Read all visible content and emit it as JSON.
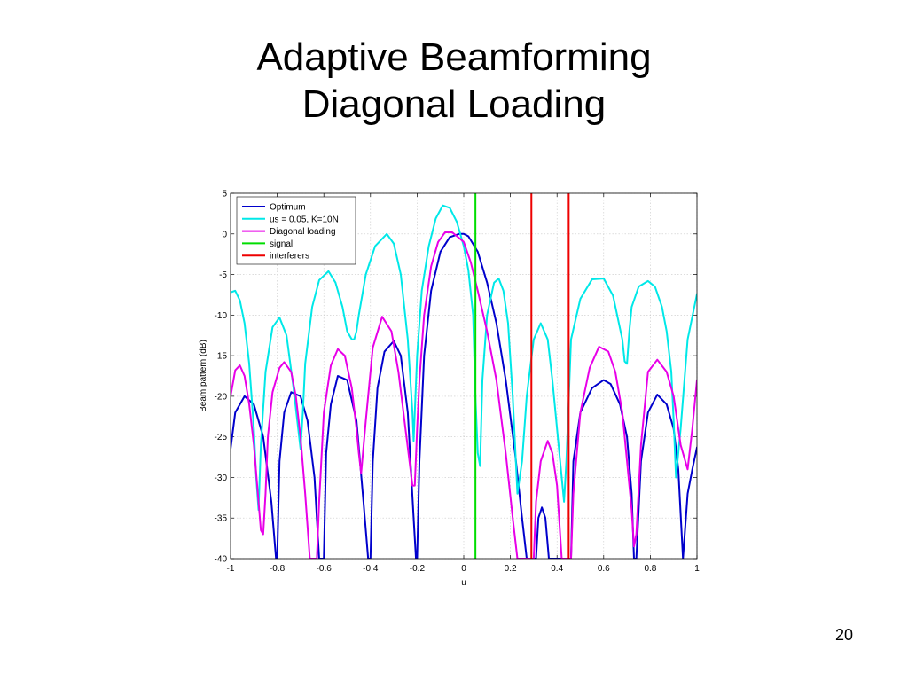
{
  "slide": {
    "title_line1": "Adaptive Beamforming",
    "title_line2": "Diagonal Loading",
    "page_number": "20"
  },
  "chart_data": {
    "type": "line",
    "title": "",
    "xlabel": "u",
    "ylabel": "Beam pattern (dB)",
    "xlim": [
      -1,
      1
    ],
    "ylim": [
      -40,
      5
    ],
    "xticks": [
      -1,
      -0.8,
      -0.6,
      -0.4,
      -0.2,
      0,
      0.2,
      0.4,
      0.6,
      0.8,
      1
    ],
    "xtick_labels": [
      "-1",
      "-0.8",
      "-0.6",
      "-0.4",
      "-0.2",
      "0",
      "0.2",
      "0.4",
      "0.6",
      "0.8",
      "1"
    ],
    "yticks": [
      5,
      0,
      -5,
      -10,
      -15,
      -20,
      -25,
      -30,
      -35,
      -40
    ],
    "ytick_labels": [
      "5",
      "0",
      "-5",
      "-10",
      "-15",
      "-20",
      "-25",
      "-30",
      "-35",
      "-40"
    ],
    "grid": true,
    "legend_position": "top-left",
    "series": [
      {
        "name": "Optimum",
        "color": "#0000cc",
        "x": [
          -1,
          -0.98,
          -0.94,
          -0.9,
          -0.86,
          -0.825,
          -0.805,
          -0.8,
          -0.79,
          -0.77,
          -0.74,
          -0.7,
          -0.67,
          -0.64,
          -0.62,
          -0.61,
          -0.6,
          -0.59,
          -0.57,
          -0.54,
          -0.5,
          -0.46,
          -0.43,
          -0.41,
          -0.4,
          -0.39,
          -0.37,
          -0.34,
          -0.3,
          -0.27,
          -0.24,
          -0.215,
          -0.205,
          -0.2,
          -0.19,
          -0.17,
          -0.14,
          -0.1,
          -0.06,
          -0.02,
          0,
          0.02,
          0.06,
          0.1,
          0.14,
          0.18,
          0.22,
          0.25,
          0.27,
          0.28,
          0.29,
          0.3,
          0.31,
          0.32,
          0.335,
          0.35,
          0.365,
          0.375,
          0.38,
          0.39,
          0.41,
          0.43,
          0.45,
          0.46,
          0.47,
          0.5,
          0.55,
          0.6,
          0.63,
          0.67,
          0.7,
          0.72,
          0.73,
          0.74,
          0.76,
          0.79,
          0.83,
          0.87,
          0.9,
          0.92,
          0.94,
          0.96,
          0.98,
          1
        ],
        "y": [
          -26.5,
          -22,
          -20,
          -21,
          -25,
          -33,
          -40,
          -40,
          -28,
          -22,
          -19.5,
          -20,
          -23,
          -30,
          -40,
          -40,
          -40,
          -27,
          -21,
          -17.5,
          -18,
          -23,
          -33,
          -40,
          -40,
          -28,
          -19,
          -14.5,
          -13.2,
          -15,
          -22,
          -35,
          -40,
          -40,
          -28,
          -15,
          -7,
          -2.2,
          -0.4,
          0,
          0,
          -0.3,
          -2.2,
          -6,
          -11,
          -18,
          -27,
          -35,
          -40,
          -40,
          -40,
          -40,
          -40,
          -35,
          -33.7,
          -35,
          -40,
          -40,
          -40,
          -40,
          -40,
          -40,
          -40,
          -40,
          -28,
          -22,
          -19,
          -18,
          -18.5,
          -21,
          -25,
          -32,
          -40,
          -40,
          -28,
          -22,
          -19.8,
          -21,
          -24,
          -29,
          -40,
          -32,
          -29,
          -26.3
        ]
      },
      {
        "name": "us = 0.05, K=10N",
        "color": "#00e8e8",
        "x": [
          -1,
          -0.98,
          -0.96,
          -0.94,
          -0.92,
          -0.9,
          -0.89,
          -0.88,
          -0.87,
          -0.85,
          -0.82,
          -0.79,
          -0.76,
          -0.73,
          -0.71,
          -0.7,
          -0.69,
          -0.68,
          -0.65,
          -0.62,
          -0.58,
          -0.55,
          -0.52,
          -0.5,
          -0.48,
          -0.47,
          -0.46,
          -0.45,
          -0.42,
          -0.38,
          -0.33,
          -0.3,
          -0.27,
          -0.24,
          -0.22,
          -0.215,
          -0.21,
          -0.2,
          -0.18,
          -0.15,
          -0.12,
          -0.09,
          -0.06,
          -0.03,
          0,
          0.02,
          0.04,
          0.05,
          0.06,
          0.07,
          0.08,
          0.1,
          0.13,
          0.15,
          0.17,
          0.19,
          0.21,
          0.23,
          0.25,
          0.27,
          0.3,
          0.33,
          0.36,
          0.38,
          0.4,
          0.42,
          0.43,
          0.44,
          0.46,
          0.5,
          0.55,
          0.6,
          0.64,
          0.68,
          0.69,
          0.7,
          0.71,
          0.72,
          0.75,
          0.79,
          0.82,
          0.85,
          0.87,
          0.89,
          0.9,
          0.91,
          0.93,
          0.96,
          1
        ],
        "y": [
          -7.2,
          -7,
          -8.2,
          -11,
          -16,
          -24,
          -30,
          -34,
          -26,
          -17,
          -11.5,
          -10.3,
          -12.5,
          -19,
          -24,
          -26.5,
          -22,
          -16,
          -9,
          -5.7,
          -4.6,
          -6,
          -9,
          -12,
          -13,
          -13,
          -12,
          -10,
          -5,
          -1.5,
          0,
          -1.2,
          -5,
          -13,
          -22,
          -25.5,
          -22,
          -15,
          -7,
          -1.5,
          1.9,
          3.5,
          3.2,
          1.5,
          -1.5,
          -4.5,
          -10,
          -20,
          -27,
          -28.6,
          -18,
          -10,
          -6,
          -5.5,
          -7,
          -11,
          -20,
          -32,
          -28,
          -20,
          -13,
          -11,
          -13,
          -18,
          -24,
          -30,
          -33,
          -28,
          -13,
          -8,
          -5.6,
          -5.5,
          -7.6,
          -13,
          -15.7,
          -16,
          -12,
          -9,
          -6.5,
          -5.8,
          -6.5,
          -9,
          -12,
          -17,
          -23,
          -30,
          -24,
          -13,
          -7.4
        ]
      },
      {
        "name": "Diagonal loading",
        "color": "#e800e8",
        "x": [
          -1,
          -0.98,
          -0.96,
          -0.94,
          -0.92,
          -0.9,
          -0.88,
          -0.87,
          -0.86,
          -0.85,
          -0.84,
          -0.82,
          -0.79,
          -0.77,
          -0.74,
          -0.72,
          -0.7,
          -0.68,
          -0.66,
          -0.64,
          -0.63,
          -0.62,
          -0.6,
          -0.57,
          -0.54,
          -0.51,
          -0.48,
          -0.46,
          -0.45,
          -0.44,
          -0.42,
          -0.39,
          -0.35,
          -0.31,
          -0.28,
          -0.25,
          -0.22,
          -0.21,
          -0.2,
          -0.19,
          -0.17,
          -0.14,
          -0.11,
          -0.08,
          -0.05,
          -0.02,
          0,
          0.03,
          0.06,
          0.1,
          0.14,
          0.18,
          0.21,
          0.23,
          0.24,
          0.26,
          0.28,
          0.29,
          0.3,
          0.31,
          0.33,
          0.36,
          0.38,
          0.4,
          0.42,
          0.44,
          0.45,
          0.46,
          0.47,
          0.5,
          0.54,
          0.58,
          0.62,
          0.65,
          0.68,
          0.7,
          0.72,
          0.73,
          0.74,
          0.76,
          0.79,
          0.83,
          0.87,
          0.9,
          0.93,
          0.96,
          0.98,
          1
        ],
        "y": [
          -20,
          -16.8,
          -16.2,
          -17.5,
          -21,
          -26,
          -33,
          -36.5,
          -37,
          -32,
          -25,
          -19.5,
          -16.5,
          -15.8,
          -17,
          -20,
          -25,
          -32,
          -40,
          -40,
          -40,
          -33,
          -22,
          -16.2,
          -14.2,
          -15,
          -19,
          -24,
          -27,
          -29.5,
          -23,
          -14,
          -10.2,
          -12,
          -17,
          -24,
          -31,
          -31,
          -24,
          -18,
          -10,
          -4,
          -1,
          0.2,
          0.2,
          -0.5,
          -1,
          -3.5,
          -7,
          -12,
          -18,
          -27,
          -35,
          -40,
          -40,
          -40,
          -40,
          -40,
          -40,
          -33,
          -28,
          -25.5,
          -27,
          -31,
          -40,
          -40,
          -40,
          -40,
          -32,
          -22,
          -16.5,
          -13.9,
          -14.5,
          -17,
          -22,
          -28,
          -34,
          -38.5,
          -37,
          -26,
          -17,
          -15.5,
          -17,
          -20,
          -26,
          -29,
          -24,
          -18
        ]
      },
      {
        "name": "signal",
        "color": "#00dd00",
        "x": [
          0.05,
          0.05
        ],
        "y": [
          -40,
          5
        ]
      },
      {
        "name": "interferers",
        "color": "#ee0000",
        "x": [
          0.29,
          0.29,
          null,
          0.45,
          0.45
        ],
        "y": [
          -40,
          5,
          null,
          -40,
          5
        ]
      }
    ]
  }
}
